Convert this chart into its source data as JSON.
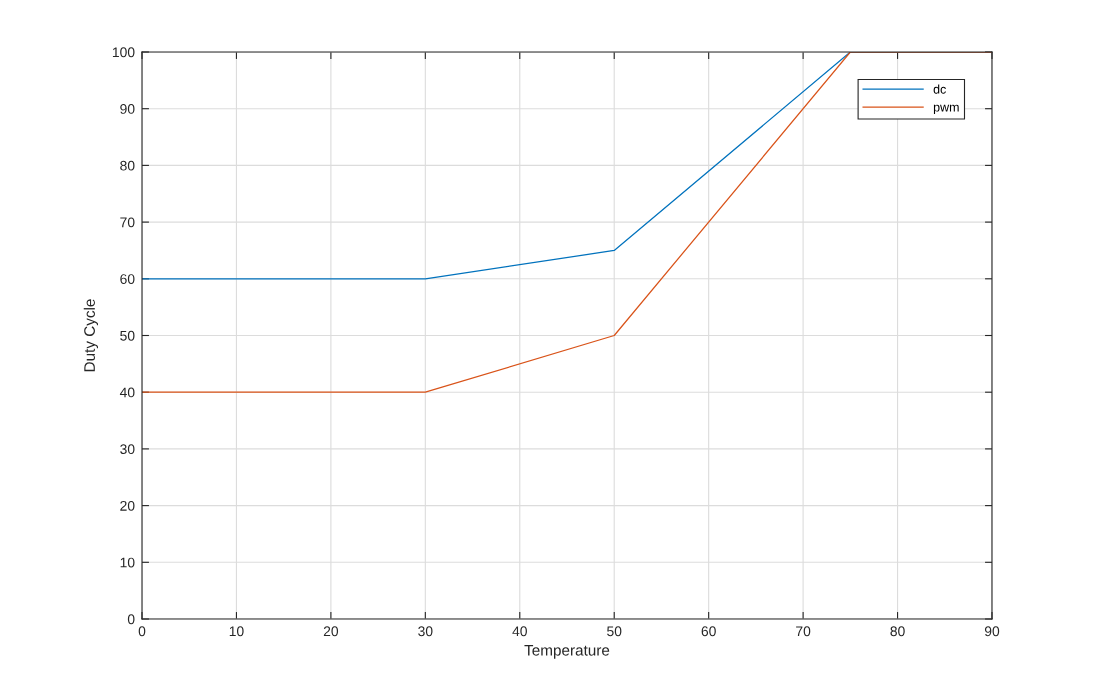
{
  "chart_data": {
    "type": "line",
    "xlabel": "Temperature",
    "ylabel": "Duty Cycle",
    "xlim": [
      0,
      90
    ],
    "xticks": [
      0,
      10,
      20,
      30,
      40,
      50,
      60,
      70,
      80,
      90
    ],
    "ylim": [
      0,
      100
    ],
    "yticks": [
      0,
      10,
      20,
      30,
      40,
      50,
      60,
      70,
      80,
      90,
      100
    ],
    "grid": true,
    "legend": "top right",
    "marker": "none",
    "line_style": "solid",
    "series": [
      {
        "name": "dc",
        "color": "#0072bd",
        "x": [
          0,
          30,
          50,
          75,
          90
        ],
        "values": [
          60,
          60,
          65,
          100,
          100
        ]
      },
      {
        "name": "pwm",
        "color": "#d95319",
        "x": [
          0,
          30,
          50,
          75,
          90
        ],
        "values": [
          40,
          40,
          50,
          100,
          100
        ]
      }
    ]
  }
}
